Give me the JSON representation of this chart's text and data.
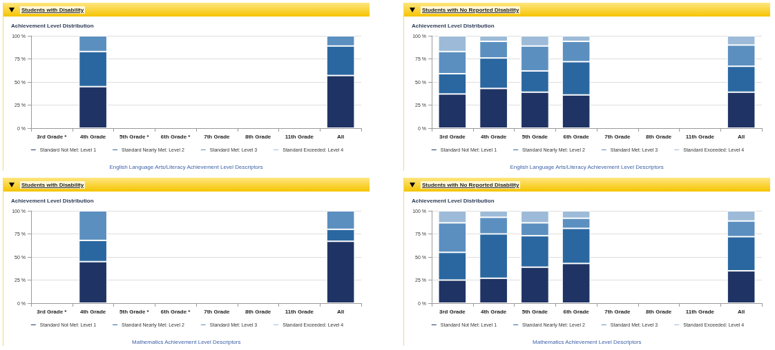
{
  "chart_data": [
    {
      "type": "bar",
      "stacked": true,
      "title": "Students with Disability",
      "subtitle": "Achievement Level Distribution",
      "categories": [
        "3rd Grade *",
        "4th Grade",
        "5th Grade *",
        "6th Grade *",
        "7th Grade",
        "8th Grade",
        "11th Grade",
        "All"
      ],
      "series": [
        {
          "name": "Standard Not Met: Level 1",
          "color": "#1f3464",
          "values": [
            null,
            45,
            null,
            null,
            null,
            null,
            null,
            57
          ]
        },
        {
          "name": "Standard Nearly Met: Level 2",
          "color": "#2a67a0",
          "values": [
            null,
            38,
            null,
            null,
            null,
            null,
            null,
            32
          ]
        },
        {
          "name": "Standard Met: Level 3",
          "color": "#5b8fbf",
          "values": [
            null,
            17,
            null,
            null,
            null,
            null,
            null,
            11
          ]
        },
        {
          "name": "Standard Exceeded: Level 4",
          "color": "#9dbbd8",
          "values": [
            null,
            null,
            null,
            null,
            null,
            null,
            null,
            null
          ]
        }
      ],
      "ylim": [
        0,
        100
      ],
      "yticks": [
        {
          "value": 0,
          "label": "0 %"
        },
        {
          "value": 25,
          "label": "25 %"
        },
        {
          "value": 50,
          "label": "50 %"
        },
        {
          "value": 75,
          "label": "75 %"
        },
        {
          "value": 100,
          "label": "100 %"
        }
      ],
      "grid": "y",
      "legend": "bottom",
      "annotations": [
        "English Language Arts/Literacy Achievement Level Descriptors"
      ]
    },
    {
      "type": "bar",
      "stacked": true,
      "title": "Students with No Reported Disability",
      "subtitle": "Achievement Level Distribution",
      "categories": [
        "3rd Grade",
        "4th Grade",
        "5th Grade",
        "6th Grade",
        "7th Grade",
        "8th Grade",
        "11th Grade",
        "All"
      ],
      "series": [
        {
          "name": "Standard Not Met: Level 1",
          "color": "#1f3464",
          "values": [
            37,
            43,
            39,
            36,
            null,
            null,
            null,
            39
          ]
        },
        {
          "name": "Standard Nearly Met: Level 2",
          "color": "#2a67a0",
          "values": [
            22,
            33,
            23,
            36,
            null,
            null,
            null,
            28
          ]
        },
        {
          "name": "Standard Met: Level 3",
          "color": "#5b8fbf",
          "values": [
            24,
            18,
            27,
            22,
            null,
            null,
            null,
            23
          ]
        },
        {
          "name": "Standard Exceeded: Level 4",
          "color": "#9dbbd8",
          "values": [
            17,
            6,
            11,
            6,
            null,
            null,
            null,
            10
          ]
        }
      ],
      "ylim": [
        0,
        100
      ],
      "yticks": [
        {
          "value": 0,
          "label": "0 %"
        },
        {
          "value": 25,
          "label": "25 %"
        },
        {
          "value": 50,
          "label": "50 %"
        },
        {
          "value": 75,
          "label": "75 %"
        },
        {
          "value": 100,
          "label": "100 %"
        }
      ],
      "grid": "y",
      "legend": "bottom",
      "annotations": [
        "English Language Arts/Literacy Achievement Level Descriptors"
      ]
    },
    {
      "type": "bar",
      "stacked": true,
      "title": "Students with Disability",
      "subtitle": "Achievement Level Distribution",
      "categories": [
        "3rd Grade *",
        "4th Grade",
        "5th Grade *",
        "6th Grade *",
        "7th Grade",
        "8th Grade",
        "11th Grade",
        "All"
      ],
      "series": [
        {
          "name": "Standard Not Met: Level 1",
          "color": "#1f3464",
          "values": [
            null,
            45,
            null,
            null,
            null,
            null,
            null,
            67
          ]
        },
        {
          "name": "Standard Nearly Met: Level 2",
          "color": "#2a67a0",
          "values": [
            null,
            23,
            null,
            null,
            null,
            null,
            null,
            13
          ]
        },
        {
          "name": "Standard Met: Level 3",
          "color": "#5b8fbf",
          "values": [
            null,
            32,
            null,
            null,
            null,
            null,
            null,
            20
          ]
        },
        {
          "name": "Standard Exceeded: Level 4",
          "color": "#9dbbd8",
          "values": [
            null,
            null,
            null,
            null,
            null,
            null,
            null,
            null
          ]
        }
      ],
      "ylim": [
        0,
        100
      ],
      "yticks": [
        {
          "value": 0,
          "label": "0 %"
        },
        {
          "value": 25,
          "label": "25 %"
        },
        {
          "value": 50,
          "label": "50 %"
        },
        {
          "value": 75,
          "label": "75 %"
        },
        {
          "value": 100,
          "label": "100 %"
        }
      ],
      "grid": "y",
      "legend": "bottom",
      "annotations": [
        "Mathematics Achievement Level Descriptors"
      ]
    },
    {
      "type": "bar",
      "stacked": true,
      "title": "Students with No Reported Disability",
      "subtitle": "Achievement Level Distribution",
      "categories": [
        "3rd Grade",
        "4th Grade",
        "5th Grade",
        "6th Grade",
        "7th Grade",
        "8th Grade",
        "11th Grade",
        "All"
      ],
      "series": [
        {
          "name": "Standard Not Met: Level 1",
          "color": "#1f3464",
          "values": [
            25,
            27,
            39,
            43,
            null,
            null,
            null,
            35
          ]
        },
        {
          "name": "Standard Nearly Met: Level 2",
          "color": "#2a67a0",
          "values": [
            30,
            48,
            34,
            38,
            null,
            null,
            null,
            37
          ]
        },
        {
          "name": "Standard Met: Level 3",
          "color": "#5b8fbf",
          "values": [
            32,
            18,
            14,
            11,
            null,
            null,
            null,
            17
          ]
        },
        {
          "name": "Standard Exceeded: Level 4",
          "color": "#9dbbd8",
          "values": [
            13,
            7,
            13,
            8,
            null,
            null,
            null,
            11
          ]
        }
      ],
      "ylim": [
        0,
        100
      ],
      "yticks": [
        {
          "value": 0,
          "label": "0 %"
        },
        {
          "value": 25,
          "label": "25 %"
        },
        {
          "value": 50,
          "label": "50 %"
        },
        {
          "value": 75,
          "label": "75 %"
        },
        {
          "value": 100,
          "label": "100 %"
        }
      ],
      "grid": "y",
      "legend": "bottom",
      "annotations": [
        "Mathematics Achievement Level Descriptors"
      ]
    }
  ]
}
